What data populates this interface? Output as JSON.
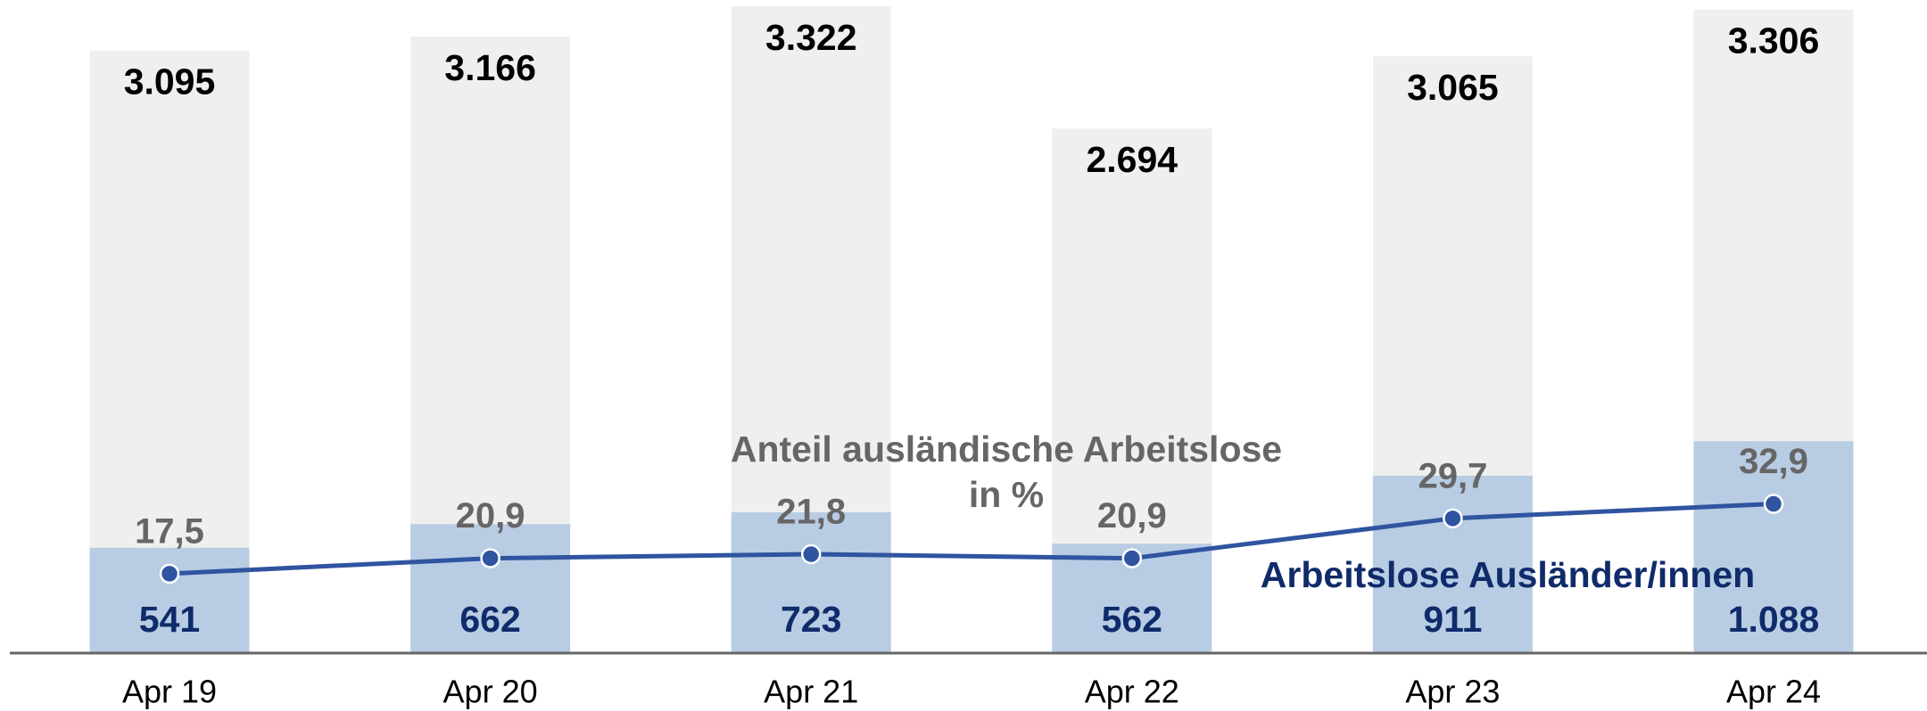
{
  "chart_data": {
    "type": "bar_line",
    "categories": [
      "Apr 19",
      "Apr 20",
      "Apr 21",
      "Apr 22",
      "Apr 23",
      "Apr 24"
    ],
    "series": [
      {
        "color": "#efefef",
        "values": [
          3095,
          3166,
          3322,
          2694,
          3065,
          3306
        ],
        "value_labels": [
          "3.095",
          "3.166",
          "3.322",
          "2.694",
          "3.065",
          "3.306"
        ]
      },
      {
        "color": "#b8cce4",
        "label_color": "#102b6a",
        "values": [
          541,
          662,
          723,
          562,
          911,
          1088
        ],
        "value_labels": [
          "541",
          "662",
          "723",
          "562",
          "911",
          "1.088"
        ]
      },
      {
        "type": "line",
        "axis": "y2",
        "color": "#2f54a0",
        "label_color": "#666666",
        "values": [
          17.5,
          20.9,
          21.8,
          20.9,
          29.7,
          32.9
        ],
        "value_labels": [
          "17,5",
          "20,9",
          "21,8",
          "20,9",
          "29,7",
          "32,9"
        ]
      }
    ],
    "annotations": [
      {
        "lines": [
          "Anteil ausländische Arbeitslose",
          "in %"
        ],
        "color": "#666666"
      },
      {
        "lines": [
          "Arbeitslose Ausländer/innen"
        ],
        "color": "#102b6a"
      }
    ],
    "ylim": [
      0,
      3354
    ],
    "y2lim": [
      0,
      144
    ],
    "grid": false
  }
}
